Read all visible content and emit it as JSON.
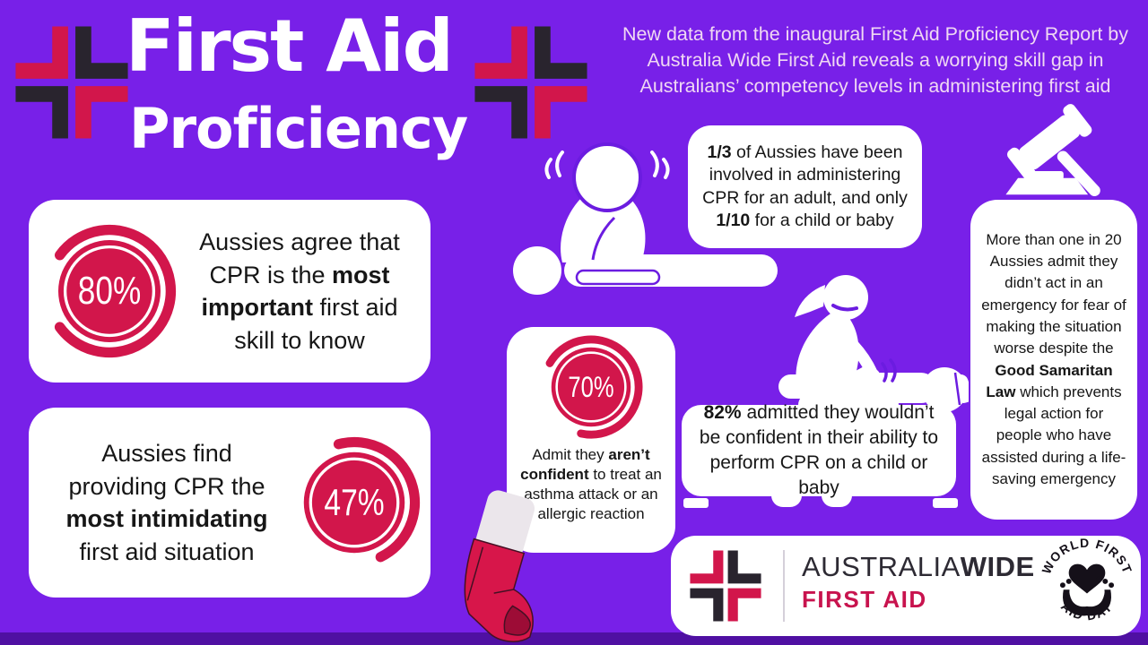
{
  "colors": {
    "background": "#7820e8",
    "bottom_bar": "#4f10a2",
    "accent_crimson": "#d2164b",
    "dark": "#29242e",
    "intro_text": "#f0d8f3",
    "card_text": "#161616"
  },
  "header": {
    "title_line1": "First Aid",
    "title_line2": "Proficiency",
    "intro": "New data from the inaugural First Aid Proficiency Report by Australia Wide First Aid reveals a worrying skill gap in Australians’ competency levels in administering first aid"
  },
  "stats": {
    "cpr_importance": {
      "percent": 80,
      "percent_label": "80%",
      "segments": [
        {
          "text": "Aussies agree that CPR is the "
        },
        {
          "text": "most important",
          "bold": true
        },
        {
          "text": " first aid skill to know"
        }
      ]
    },
    "cpr_intimidating": {
      "percent": 47,
      "percent_label": "47%",
      "segments": [
        {
          "text": "Aussies find providing CPR the "
        },
        {
          "text": "most intimidating",
          "bold": true
        },
        {
          "text": " first aid situation"
        }
      ]
    },
    "cpr_involvement": {
      "segments": [
        {
          "text": "1/3",
          "bold": true
        },
        {
          "text": " of Aussies have been involved in administering CPR for an adult, and only "
        },
        {
          "text": "1/10",
          "bold": true
        },
        {
          "text": " for a child or baby"
        }
      ]
    },
    "asthma_confidence": {
      "percent": 70,
      "percent_label": "70%",
      "segments": [
        {
          "text": "Admit they "
        },
        {
          "text": "aren’t confident",
          "bold": true
        },
        {
          "text": " to treat an asthma attack or an allergic reaction"
        }
      ]
    },
    "child_cpr_confidence": {
      "segments": [
        {
          "text": "82%",
          "bold": true
        },
        {
          "text": " admitted they wouldn’t be confident in their ability to perform CPR on a child or baby"
        }
      ]
    },
    "good_samaritan": {
      "segments": [
        {
          "text": "More than one in 20 Aussies admit they didn’t act in an emergency for fear of making the situation worse despite the "
        },
        {
          "text": "Good Samaritan Law",
          "bold": true
        },
        {
          "text": " which prevents legal action for people who have assisted during a life-saving emergency"
        }
      ]
    }
  },
  "footer": {
    "brand_regular": "AUSTRALIA",
    "brand_bold": "WIDE",
    "brand_sub": "FIRST AID",
    "badge_top": "WORLD FIRST",
    "badge_bottom": "AID DAY"
  },
  "chart_data": {
    "type": "pie",
    "title": "First Aid Proficiency",
    "subtitle": "Inaugural First Aid Proficiency Report by Australia Wide First Aid",
    "series": [
      {
        "name": "Aussies agree that CPR is the most important first aid skill to know",
        "value": 80,
        "unit": "%",
        "style": "donut-gauge"
      },
      {
        "name": "Aussies find providing CPR the most intimidating first aid situation",
        "value": 47,
        "unit": "%",
        "style": "donut-gauge"
      },
      {
        "name": "Admit they aren't confident to treat an asthma attack or an allergic reaction",
        "value": 70,
        "unit": "%",
        "style": "donut-gauge"
      },
      {
        "name": "Admitted they wouldn't be confident in their ability to perform CPR on a child or baby",
        "value": 82,
        "unit": "%",
        "style": "text"
      },
      {
        "name": "Aussies who have been involved in administering CPR for an adult",
        "value": "1/3",
        "style": "text"
      },
      {
        "name": "Aussies who have been involved in administering CPR for a child or baby",
        "value": "1/10",
        "style": "text"
      },
      {
        "name": "Aussies who admit they didn't act in an emergency for fear of making the situation worse",
        "value": "more than 1 in 20",
        "style": "text"
      }
    ],
    "legend_position": "none",
    "grid": false
  }
}
